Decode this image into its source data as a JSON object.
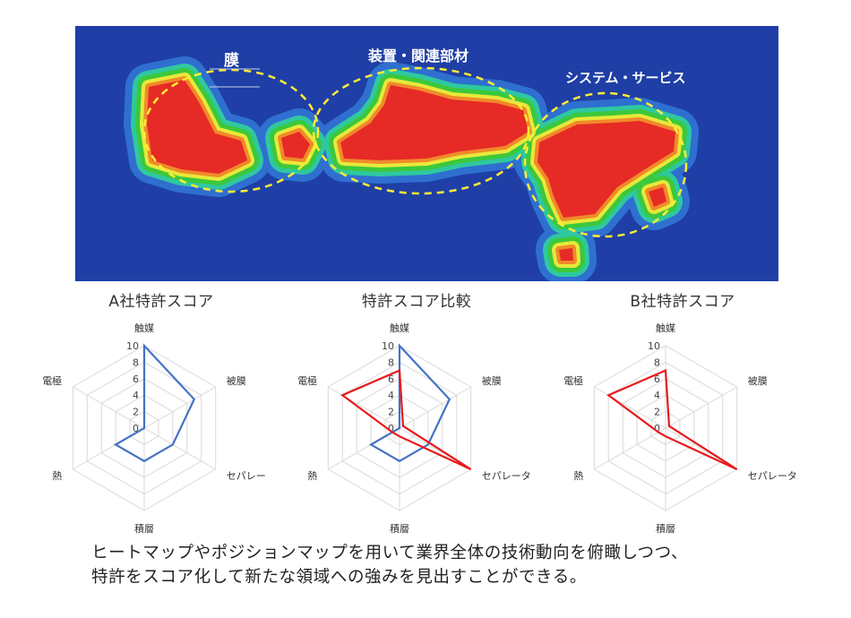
{
  "heatmap": {
    "labels": [
      "膜",
      "装置・関連部材",
      "システム・サービス"
    ],
    "colors": {
      "background": "#1f3fa6",
      "low": "#2f6fd0",
      "mid": "#2fc8a0",
      "green": "#3cc83c",
      "yellow": "#e8e83a",
      "orange": "#f08a2a",
      "red": "#e62a26",
      "ellipse": "#ffee33"
    }
  },
  "chart_data": [
    {
      "type": "radar",
      "title": "A社特許スコア",
      "axes": [
        "触媒",
        "被膜",
        "セパレー",
        "積層",
        "熱",
        "電極"
      ],
      "ticks": [
        "0",
        "2",
        "4",
        "6",
        "8",
        "10"
      ],
      "range": [
        0,
        10
      ],
      "series": [
        {
          "color": "#4472c4",
          "values": [
            10,
            7,
            4,
            4,
            4,
            0
          ]
        }
      ]
    },
    {
      "type": "radar",
      "title": "特許スコア比較",
      "axes": [
        "触媒",
        "被膜",
        "セパレータ",
        "積層",
        "熱",
        "電極"
      ],
      "ticks": [
        "0",
        "2",
        "4",
        "6",
        "8",
        "10"
      ],
      "range": [
        0,
        10
      ],
      "series": [
        {
          "color": "#4472c4",
          "values": [
            10,
            7,
            4,
            4,
            4,
            0
          ]
        },
        {
          "color": "#e8191c",
          "values": [
            7,
            0.5,
            10,
            1,
            1,
            8
          ]
        }
      ]
    },
    {
      "type": "radar",
      "title": "B社特許スコア",
      "axes": [
        "触媒",
        "被膜",
        "セパレータ",
        "積層",
        "熱",
        "電極"
      ],
      "ticks": [
        "0",
        "2",
        "4",
        "6",
        "8",
        "10"
      ],
      "range": [
        0,
        10
      ],
      "series": [
        {
          "color": "#e8191c",
          "values": [
            7,
            0.5,
            10,
            1,
            1,
            8
          ]
        }
      ]
    }
  ],
  "caption": [
    "ヒートマップやポジションマップを用いて業界全体の技術動向を俯瞰しつつ、",
    "特許をスコア化して新たな領域への強みを見出すことができる。"
  ]
}
